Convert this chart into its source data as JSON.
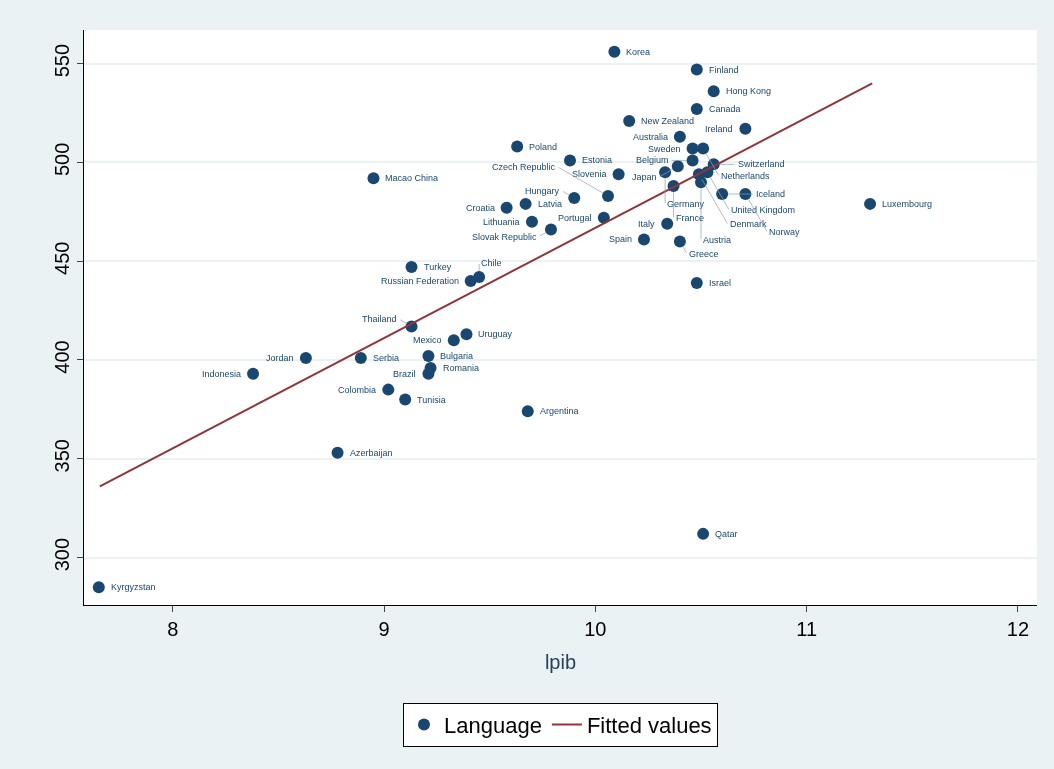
{
  "chart_data": {
    "type": "scatter",
    "xlabel": "lpib",
    "xlim": [
      7.58,
      12.09
    ],
    "xticks": [
      8,
      9,
      10,
      11,
      12
    ],
    "ylim": [
      276,
      567
    ],
    "yticks": [
      300,
      350,
      400,
      450,
      500,
      550
    ],
    "grid": "y",
    "legend": "bottom",
    "series": [
      {
        "name": "Language",
        "color": "#1a476f",
        "marker": "circle",
        "x": [
          10.09,
          10.48,
          10.56,
          10.48,
          10.16,
          10.71,
          10.4,
          9.63,
          10.46,
          10.51,
          10.46,
          9.88,
          10.56,
          10.39,
          10.53,
          10.33,
          10.49,
          10.11,
          8.95,
          10.5,
          10.37,
          10.6,
          10.71,
          10.06,
          9.9,
          9.67,
          11.3,
          9.58,
          10.04,
          9.7,
          10.34,
          9.79,
          10.23,
          10.4,
          9.13,
          9.45,
          9.41,
          10.48,
          9.13,
          9.39,
          9.33,
          9.21,
          8.89,
          8.63,
          9.22,
          8.38,
          9.21,
          9.02,
          9.1,
          9.68,
          8.78,
          10.51,
          7.65
        ],
        "values": [
          556,
          547,
          536,
          527,
          521,
          517,
          513,
          508,
          507,
          507,
          501,
          501,
          499,
          498,
          495,
          495,
          494,
          494,
          492,
          490,
          488,
          484,
          484,
          483,
          482,
          479,
          479,
          477,
          472,
          470,
          469,
          466,
          461,
          460,
          447,
          442,
          440,
          439,
          417,
          413,
          410,
          402,
          401,
          401,
          396,
          393,
          393,
          385,
          380,
          374,
          353,
          312,
          285
        ]
      },
      {
        "name": "Fitted values",
        "type": "line",
        "color": "#90353b",
        "marker": "none",
        "line_style": "solid",
        "x": [
          7.655,
          11.31
        ],
        "values": [
          336,
          540
        ]
      }
    ],
    "annotations": [
      {
        "text": "Korea",
        "x": 10.09,
        "y": 556
      },
      {
        "text": "Finland",
        "x": 10.48,
        "y": 547
      },
      {
        "text": "Hong Kong",
        "x": 10.56,
        "y": 536
      },
      {
        "text": "Canada",
        "x": 10.48,
        "y": 527
      },
      {
        "text": "New Zealand",
        "x": 10.16,
        "y": 521
      },
      {
        "text": "Ireland",
        "x": 10.71,
        "y": 517
      },
      {
        "text": "Australia",
        "x": 10.4,
        "y": 513
      },
      {
        "text": "Poland",
        "x": 9.63,
        "y": 508
      },
      {
        "text": "Sweden",
        "x": 10.46,
        "y": 507
      },
      {
        "text": "Netherlands",
        "x": 10.51,
        "y": 507
      },
      {
        "text": "Belgium",
        "x": 10.46,
        "y": 501
      },
      {
        "text": "Estonia",
        "x": 9.88,
        "y": 501
      },
      {
        "text": "Switzerland",
        "x": 10.56,
        "y": 499
      },
      {
        "text": "Japan",
        "x": 10.39,
        "y": 498
      },
      {
        "text": "United Kingdom",
        "x": 10.53,
        "y": 495
      },
      {
        "text": "Germany",
        "x": 10.33,
        "y": 495
      },
      {
        "text": "Denmark",
        "x": 10.49,
        "y": 494
      },
      {
        "text": "Slovenia",
        "x": 10.11,
        "y": 494
      },
      {
        "text": "Macao China",
        "x": 8.95,
        "y": 492
      },
      {
        "text": "Austria",
        "x": 10.5,
        "y": 490
      },
      {
        "text": "France",
        "x": 10.37,
        "y": 488
      },
      {
        "text": "Iceland",
        "x": 10.6,
        "y": 484
      },
      {
        "text": "Norway",
        "x": 10.71,
        "y": 484
      },
      {
        "text": "Czech Republic",
        "x": 10.06,
        "y": 483
      },
      {
        "text": "Hungary",
        "x": 9.9,
        "y": 482
      },
      {
        "text": "Latvia",
        "x": 9.67,
        "y": 479
      },
      {
        "text": "Luxembourg",
        "x": 11.3,
        "y": 479
      },
      {
        "text": "Croatia",
        "x": 9.58,
        "y": 477
      },
      {
        "text": "Portugal",
        "x": 10.04,
        "y": 472
      },
      {
        "text": "Lithuania",
        "x": 9.7,
        "y": 470
      },
      {
        "text": "Italy",
        "x": 10.34,
        "y": 469
      },
      {
        "text": "Slovak Republic",
        "x": 9.79,
        "y": 466
      },
      {
        "text": "Spain",
        "x": 10.23,
        "y": 461
      },
      {
        "text": "Greece",
        "x": 10.4,
        "y": 460
      },
      {
        "text": "Turkey",
        "x": 9.13,
        "y": 447
      },
      {
        "text": "Chile",
        "x": 9.45,
        "y": 442
      },
      {
        "text": "Russian Federation",
        "x": 9.41,
        "y": 440
      },
      {
        "text": "Israel",
        "x": 10.48,
        "y": 439
      },
      {
        "text": "Thailand",
        "x": 9.13,
        "y": 417
      },
      {
        "text": "Uruguay",
        "x": 9.39,
        "y": 413
      },
      {
        "text": "Mexico",
        "x": 9.33,
        "y": 410
      },
      {
        "text": "Bulgaria",
        "x": 9.21,
        "y": 402
      },
      {
        "text": "Serbia",
        "x": 8.89,
        "y": 401
      },
      {
        "text": "Jordan",
        "x": 8.63,
        "y": 401
      },
      {
        "text": "Romania",
        "x": 9.22,
        "y": 396
      },
      {
        "text": "Indonesia",
        "x": 8.38,
        "y": 393
      },
      {
        "text": "Brazil",
        "x": 9.21,
        "y": 393
      },
      {
        "text": "Colombia",
        "x": 9.02,
        "y": 385
      },
      {
        "text": "Tunisia",
        "x": 9.1,
        "y": 380
      },
      {
        "text": "Argentina",
        "x": 9.68,
        "y": 374
      },
      {
        "text": "Azerbaijan",
        "x": 8.78,
        "y": 353
      },
      {
        "text": "Qatar",
        "x": 10.51,
        "y": 312
      },
      {
        "text": "Kyrgyzstan",
        "x": 7.65,
        "y": 285
      }
    ]
  }
}
